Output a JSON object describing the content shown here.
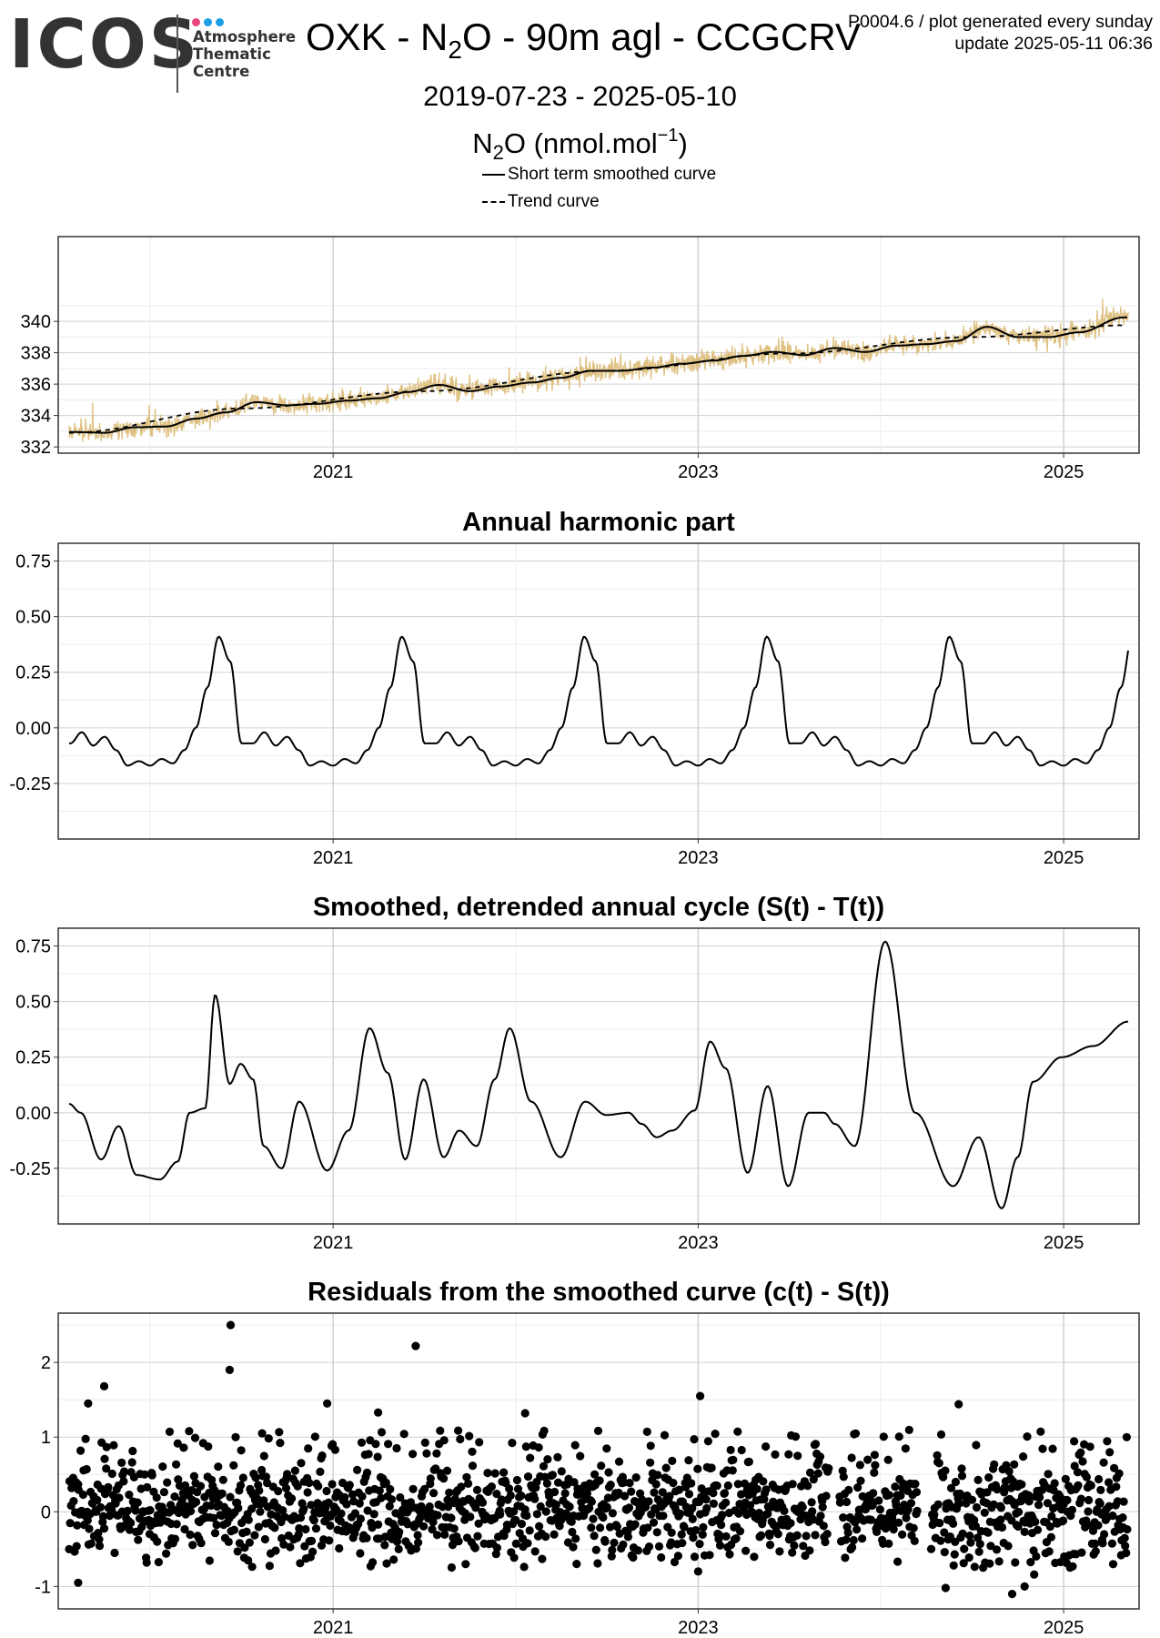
{
  "logo": {
    "wordmark": "ICOS",
    "line1": "Atmosphere",
    "line2": "Thematic",
    "line3": "Centre",
    "dot_colors": [
      "#e8457d",
      "#1e9fe5",
      "#1e9fe5"
    ]
  },
  "header": {
    "title_pre": "OXK - N",
    "title_sub": "2",
    "title_post": "O - 90m agl - CCGCRV",
    "meta_line1": "P0004.6 / plot generated every sunday",
    "meta_line2": "update  2025-05-11 06:36",
    "date_range": "2019-07-23 - 2025-05-10",
    "unit_pre": "N",
    "unit_sub": "2",
    "unit_mid": "O (nmol.mol",
    "unit_sup": "−1",
    "unit_post": ")"
  },
  "legend": {
    "items": [
      {
        "label": "Short term smoothed curve",
        "style": "solid"
      },
      {
        "label": "Trend curve",
        "style": "dashed"
      }
    ]
  },
  "colors": {
    "raw_series": "#dfc283",
    "curves": "#000000",
    "panel_border": "#333333",
    "grid_major": "#d0d0d0",
    "grid_minor": "#ececec"
  },
  "chart_data": [
    {
      "type": "line",
      "title": "",
      "x_range": [
        "2019-07-23",
        "2025-05-10"
      ],
      "ylim": [
        331.6,
        345.4
      ],
      "yticks": [
        332,
        334,
        336,
        338,
        340
      ],
      "xtick_labels": [
        "2021",
        "2023",
        "2025"
      ],
      "grid": true,
      "series": [
        {
          "name": "Short term smoothed curve",
          "style": "solid",
          "x": [
            "2019-08-01",
            "2019-10-01",
            "2019-12-01",
            "2020-02-01",
            "2020-04-01",
            "2020-06-01",
            "2020-08-01",
            "2020-10-01",
            "2020-12-01",
            "2021-02-01",
            "2021-04-01",
            "2021-06-01",
            "2021-08-01",
            "2021-10-01",
            "2021-12-01",
            "2022-02-01",
            "2022-04-01",
            "2022-06-01",
            "2022-08-01",
            "2022-10-01",
            "2022-12-01",
            "2023-02-01",
            "2023-04-01",
            "2023-06-01",
            "2023-08-01",
            "2023-10-01",
            "2023-12-01",
            "2024-02-01",
            "2024-04-01",
            "2024-06-01",
            "2024-08-01",
            "2024-10-01",
            "2024-12-01",
            "2025-02-01",
            "2025-05-01"
          ],
          "y": [
            332.95,
            332.9,
            333.25,
            333.3,
            333.8,
            334.2,
            334.85,
            334.65,
            334.75,
            334.95,
            335.1,
            335.5,
            335.95,
            335.55,
            335.85,
            336.1,
            336.4,
            336.85,
            336.85,
            337.05,
            337.3,
            337.5,
            337.8,
            338.05,
            337.85,
            338.3,
            338.05,
            338.45,
            338.55,
            338.75,
            339.65,
            339.0,
            339.0,
            339.3,
            340.25
          ]
        },
        {
          "name": "Trend curve",
          "style": "dashed",
          "x": [
            "2019-07-23",
            "2020-07-01",
            "2021-07-01",
            "2022-07-01",
            "2023-07-01",
            "2024-07-01",
            "2025-05-10"
          ],
          "y": [
            332.9,
            334.45,
            335.55,
            336.85,
            337.95,
            339.0,
            339.75
          ]
        },
        {
          "name": "Raw data",
          "style": "raw",
          "summary": "daily values, noisy around the smoothed curve, range approx. 332 to 341.3"
        }
      ]
    },
    {
      "type": "line",
      "title": "Annual harmonic part",
      "x_range": [
        "2019-07-23",
        "2025-05-10"
      ],
      "ylim": [
        -0.5,
        0.83
      ],
      "yticks": [
        -0.25,
        0.0,
        0.25,
        0.5,
        0.75
      ],
      "ytick_labels": [
        "-0.25",
        "0.00",
        "0.25",
        "0.50",
        "0.75"
      ],
      "xtick_labels": [
        "2021",
        "2023",
        "2025"
      ],
      "series": [
        {
          "name": "",
          "style": "solid",
          "periodic": "yearly",
          "x_month": [
            0.0,
            0.75,
            1.5,
            2.25,
            3.0,
            3.75,
            4.5,
            5.25,
            6.0,
            6.75,
            7.5,
            8.25,
            9.0,
            9.75,
            10.5,
            11.25,
            12.0
          ],
          "y": [
            -0.17,
            -0.14,
            -0.16,
            -0.1,
            0.0,
            0.18,
            0.41,
            0.3,
            -0.07,
            -0.07,
            -0.02,
            -0.08,
            -0.04,
            -0.1,
            -0.17,
            -0.15,
            -0.17
          ]
        }
      ]
    },
    {
      "type": "line",
      "title": "Smoothed, detrended annual cycle (S(t) - T(t))",
      "x_range": [
        "2019-07-23",
        "2025-05-10"
      ],
      "ylim": [
        -0.5,
        0.83
      ],
      "yticks": [
        -0.25,
        0.0,
        0.25,
        0.5,
        0.75
      ],
      "ytick_labels": [
        "-0.25",
        "0.00",
        "0.25",
        "0.50",
        "0.75"
      ],
      "xtick_labels": [
        "2021",
        "2023",
        "2025"
      ],
      "series": [
        {
          "name": "",
          "style": "solid",
          "x": [
            "2019-07-23",
            "2019-08-15",
            "2019-09-25",
            "2019-10-30",
            "2019-12-05",
            "2020-01-20",
            "2020-02-25",
            "2020-03-20",
            "2020-04-20",
            "2020-05-10",
            "2020-06-08",
            "2020-06-30",
            "2020-07-25",
            "2020-08-15",
            "2020-09-20",
            "2020-10-25",
            "2020-12-20",
            "2021-02-01",
            "2021-03-15",
            "2021-04-20",
            "2021-05-25",
            "2021-07-01",
            "2021-08-10",
            "2021-09-10",
            "2021-10-15",
            "2021-11-20",
            "2021-12-20",
            "2022-02-01",
            "2022-04-01",
            "2022-05-20",
            "2022-07-01",
            "2022-08-15",
            "2022-09-10",
            "2022-10-10",
            "2022-11-10",
            "2022-12-25",
            "2023-01-25",
            "2023-02-25",
            "2023-04-10",
            "2023-05-20",
            "2023-06-30",
            "2023-08-10",
            "2023-09-10",
            "2023-10-01",
            "2023-11-10",
            "2024-01-10",
            "2024-03-10",
            "2024-05-25",
            "2024-07-15",
            "2024-08-30",
            "2024-10-01",
            "2024-11-01",
            "2024-12-28",
            "2025-03-01",
            "2025-05-10"
          ],
          "y": [
            0.04,
            0.0,
            -0.21,
            -0.06,
            -0.28,
            -0.3,
            -0.22,
            0.0,
            0.02,
            0.53,
            0.13,
            0.22,
            0.15,
            -0.15,
            -0.25,
            0.05,
            -0.26,
            -0.08,
            0.38,
            0.18,
            -0.21,
            0.15,
            -0.2,
            -0.08,
            -0.15,
            0.15,
            0.38,
            0.05,
            -0.2,
            0.05,
            -0.01,
            0.0,
            -0.05,
            -0.11,
            -0.08,
            0.01,
            0.32,
            0.2,
            -0.27,
            0.12,
            -0.33,
            0.0,
            0.0,
            -0.05,
            -0.15,
            0.77,
            0.0,
            -0.33,
            -0.11,
            -0.43,
            -0.2,
            0.14,
            0.25,
            0.3,
            0.41
          ]
        }
      ]
    },
    {
      "type": "scatter",
      "title": "Residuals from the smoothed curve (c(t) - S(t))",
      "x_range": [
        "2019-07-23",
        "2025-05-10"
      ],
      "ylim": [
        -1.3,
        2.66
      ],
      "yticks": [
        -1,
        0,
        1,
        2
      ],
      "ytick_labels": [
        "-1",
        "0",
        "1",
        "2"
      ],
      "xtick_labels": [
        "2021",
        "2023",
        "2025"
      ],
      "series": [
        {
          "name": "",
          "style": "points",
          "summary": "approx. 1500 daily residuals, mostly between -0.7 and 1.0; notable outliers near 2.5 (2020-06), 2.2 (2021-06), 1.7 (2019-10), 1.55 (2023-01), 1.45 (2024-06), -1.1 (2024-09)"
        }
      ]
    }
  ]
}
